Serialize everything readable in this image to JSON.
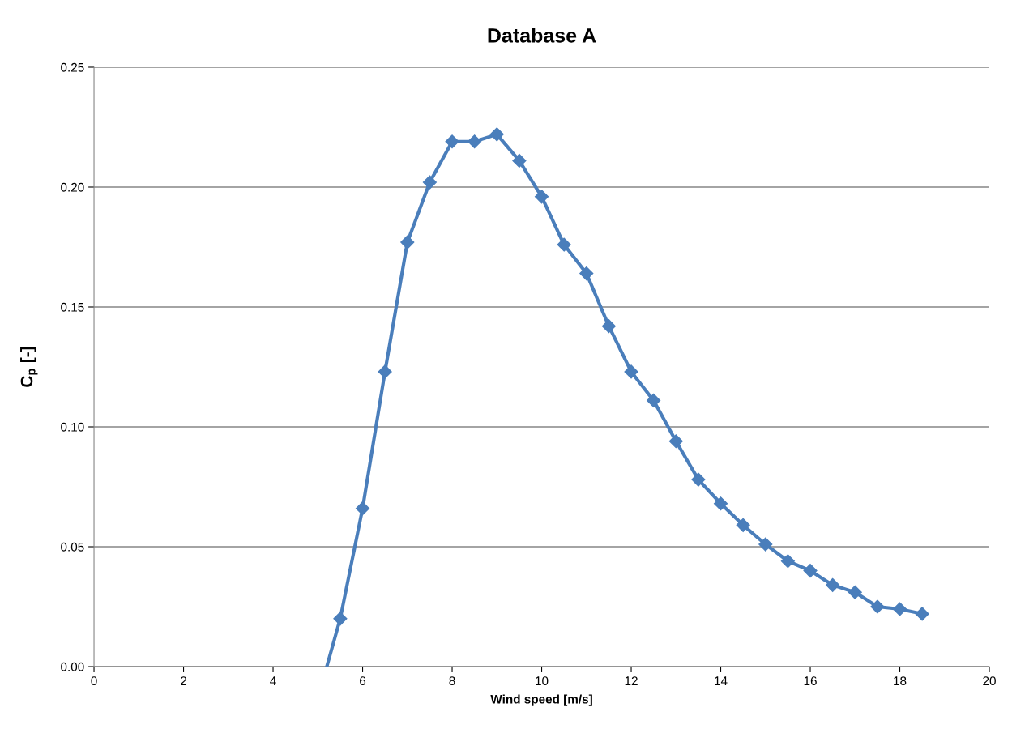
{
  "chart_data": {
    "type": "line",
    "title": "Database A",
    "xlabel": "Wind speed [m/s]",
    "ylabel": "C$_{p}$ [-]",
    "series": [
      {
        "color": "#4a7ebb",
        "marker": "diamond",
        "x": [
          5.5,
          6,
          6.5,
          7,
          7.5,
          8,
          8.5,
          9,
          9.5,
          10,
          10.5,
          11,
          11.5,
          12,
          12.5,
          13,
          13.5,
          14,
          14.5,
          15,
          15.5,
          16,
          16.5,
          17,
          17.5,
          18,
          18.5
        ],
        "values": [
          0.02,
          0.066,
          0.123,
          0.177,
          0.202,
          0.219,
          0.219,
          0.222,
          0.211,
          0.196,
          0.176,
          0.164,
          0.142,
          0.123,
          0.111,
          0.094,
          0.078,
          0.068,
          0.059,
          0.051,
          0.044,
          0.04,
          0.034,
          0.031,
          0.025,
          0.024,
          0.022
        ]
      },
      {
        "color": "#4a7ebb",
        "marker": "none",
        "x": [
          5.2,
          5.5
        ],
        "values": [
          0.0,
          0.02
        ]
      }
    ],
    "xlim": [
      0,
      20
    ],
    "xticks": [
      0,
      2,
      4,
      6,
      8,
      10,
      12,
      14,
      16,
      18,
      20
    ],
    "ylim": [
      0,
      0.25
    ],
    "yticks": [
      {
        "value": 0,
        "label": "0.00"
      },
      {
        "value": 0.05,
        "label": "0.05"
      },
      {
        "value": 0.1,
        "label": "0.10"
      },
      {
        "value": 0.15,
        "label": "0.15"
      },
      {
        "value": 0.2,
        "label": "0.20"
      },
      {
        "value": 0.25,
        "label": "0.25"
      }
    ],
    "grid": "y"
  }
}
